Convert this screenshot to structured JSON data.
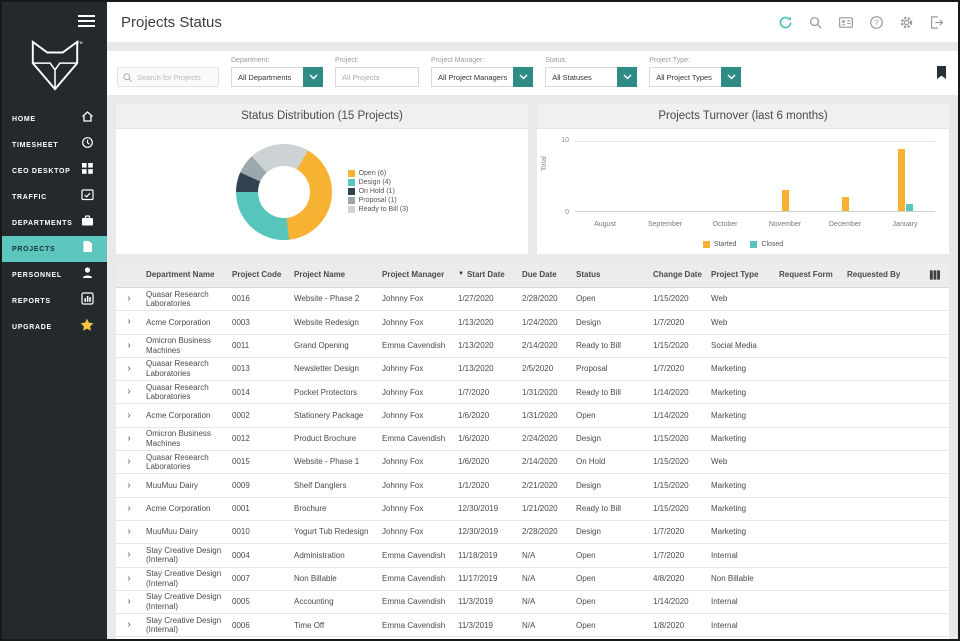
{
  "header": {
    "title": "Projects Status",
    "icons": [
      "sync-icon",
      "search-icon",
      "contacts-icon",
      "help-icon",
      "settings-icon",
      "logout-icon"
    ]
  },
  "sidebar": {
    "items": [
      {
        "label": "HOME"
      },
      {
        "label": "TIMESHEET"
      },
      {
        "label": "CEO DESKTOP"
      },
      {
        "label": "TRAFFIC"
      },
      {
        "label": "DEPARTMENTS"
      },
      {
        "label": "PROJECTS",
        "active": true
      },
      {
        "label": "PERSONNEL"
      },
      {
        "label": "REPORTS"
      },
      {
        "label": "UPGRADE"
      }
    ]
  },
  "filters": {
    "search_placeholder": "Search for Projects",
    "fields": [
      {
        "label": "Department:",
        "value": "All Departments",
        "type": "dropdown"
      },
      {
        "label": "Project:",
        "value": "All Projects",
        "type": "input"
      },
      {
        "label": "Project Manager:",
        "value": "All Project Managers",
        "type": "dropdown"
      },
      {
        "label": "Status:",
        "value": "All Statuses",
        "type": "dropdown"
      },
      {
        "label": "Project Type:",
        "value": "All Project Types",
        "type": "dropdown"
      }
    ]
  },
  "colors": {
    "accent_teal": "#5CC6BF",
    "button_teal": "#2E8C85",
    "orange": "#F7B234",
    "sidebar_dark": "#23292C"
  },
  "chart_data": [
    {
      "type": "pie",
      "title": "Status Distribution (15 Projects)",
      "labels": [
        "Open (6)",
        "Design (4)",
        "On Hold (1)",
        "Proposal (1)",
        "Ready to Bill (3)"
      ],
      "values": [
        6,
        4,
        1,
        1,
        3
      ],
      "colors": [
        "#F7B234",
        "#57C5BC",
        "#31434E",
        "#9DA8AE",
        "#CDD2D4"
      ],
      "start_angle": 30,
      "legend_position": "right",
      "donut": true
    },
    {
      "type": "bar",
      "title": "Projects Turnover (last 6 months)",
      "categories": [
        "August",
        "September",
        "October",
        "November",
        "December",
        "January"
      ],
      "series": [
        {
          "name": "Started",
          "color": "#F7B234",
          "values": [
            0,
            0,
            0,
            3,
            2,
            9
          ]
        },
        {
          "name": "Closed",
          "color": "#57C5BC",
          "values": [
            0,
            0,
            0,
            0,
            0,
            1
          ]
        }
      ],
      "xlabel": "",
      "ylabel": "Total",
      "ylim": [
        0,
        10
      ],
      "legend_position": "bottom"
    }
  ],
  "table": {
    "columns": [
      "Department Name",
      "Project Code",
      "Project Name",
      "Project Manager",
      "Start Date",
      "Due Date",
      "Status",
      "Change Date",
      "Project Type",
      "Request Form",
      "Requested By"
    ],
    "sort_column": "Start Date",
    "sort_direction": "desc",
    "rows": [
      {
        "dept": "Quasar Research Laboratories",
        "code": "0016",
        "name": "Website - Phase 2",
        "manager": "Johnny Fox",
        "start": "1/27/2020",
        "due": "2/28/2020",
        "status": "Open",
        "change": "1/15/2020",
        "type": "Web"
      },
      {
        "dept": "Acme Corporation",
        "code": "0003",
        "name": "Website Redesign",
        "manager": "Johnny Fox",
        "start": "1/13/2020",
        "due": "1/24/2020",
        "status": "Design",
        "change": "1/7/2020",
        "type": "Web"
      },
      {
        "dept": "Omicron Business Machines",
        "code": "0011",
        "name": "Grand Opening",
        "manager": "Emma Cavendish",
        "start": "1/13/2020",
        "due": "2/14/2020",
        "status": "Ready to Bill",
        "change": "1/15/2020",
        "type": "Social Media"
      },
      {
        "dept": "Quasar Research Laboratories",
        "code": "0013",
        "name": "Newsletter Design",
        "manager": "Johnny Fox",
        "start": "1/13/2020",
        "due": "2/5/2020",
        "status": "Proposal",
        "change": "1/7/2020",
        "type": "Marketing"
      },
      {
        "dept": "Quasar Research Laboratories",
        "code": "0014",
        "name": "Pocket Protectors",
        "manager": "Johnny Fox",
        "start": "1/7/2020",
        "due": "1/31/2020",
        "status": "Ready to Bill",
        "change": "1/14/2020",
        "type": "Marketing"
      },
      {
        "dept": "Acme Corporation",
        "code": "0002",
        "name": "Stationery Package",
        "manager": "Johnny Fox",
        "start": "1/6/2020",
        "due": "1/31/2020",
        "status": "Open",
        "change": "1/14/2020",
        "type": "Marketing"
      },
      {
        "dept": "Omicron Business Machines",
        "code": "0012",
        "name": "Product Brochure",
        "manager": "Emma Cavendish",
        "start": "1/6/2020",
        "due": "2/24/2020",
        "status": "Design",
        "change": "1/15/2020",
        "type": "Marketing"
      },
      {
        "dept": "Quasar Research Laboratories",
        "code": "0015",
        "name": "Website - Phase 1",
        "manager": "Johnny Fox",
        "start": "1/6/2020",
        "due": "2/14/2020",
        "status": "On Hold",
        "change": "1/15/2020",
        "type": "Web"
      },
      {
        "dept": "MuuMuu Dairy",
        "code": "0009",
        "name": "Shelf Danglers",
        "manager": "Johnny Fox",
        "start": "1/1/2020",
        "due": "2/21/2020",
        "status": "Design",
        "change": "1/15/2020",
        "type": "Marketing"
      },
      {
        "dept": "Acme Corporation",
        "code": "0001",
        "name": "Brochure",
        "manager": "Johnny Fox",
        "start": "12/30/2019",
        "due": "1/21/2020",
        "status": "Ready to Bill",
        "change": "1/15/2020",
        "type": "Marketing"
      },
      {
        "dept": "MuuMuu Dairy",
        "code": "0010",
        "name": "Yogurt Tub Redesign",
        "manager": "Johnny Fox",
        "start": "12/30/2019",
        "due": "2/28/2020",
        "status": "Design",
        "change": "1/7/2020",
        "type": "Marketing"
      },
      {
        "dept": "Stay Creative Design (Internal)",
        "code": "0004",
        "name": "Administration",
        "manager": "Emma Cavendish",
        "start": "11/18/2019",
        "due": "N/A",
        "status": "Open",
        "change": "1/7/2020",
        "type": "Internal"
      },
      {
        "dept": "Stay Creative Design (Internal)",
        "code": "0007",
        "name": "Non Billable",
        "manager": "Emma Cavendish",
        "start": "11/17/2019",
        "due": "N/A",
        "status": "Open",
        "change": "4/8/2020",
        "type": "Non Billable"
      },
      {
        "dept": "Stay Creative Design (Internal)",
        "code": "0005",
        "name": "Accounting",
        "manager": "Emma Cavendish",
        "start": "11/3/2019",
        "due": "N/A",
        "status": "Open",
        "change": "1/14/2020",
        "type": "Internal"
      },
      {
        "dept": "Stay Creative Design (Internal)",
        "code": "0006",
        "name": "Time Off",
        "manager": "Emma Cavendish",
        "start": "11/3/2019",
        "due": "N/A",
        "status": "Open",
        "change": "1/8/2020",
        "type": "Internal"
      }
    ]
  }
}
